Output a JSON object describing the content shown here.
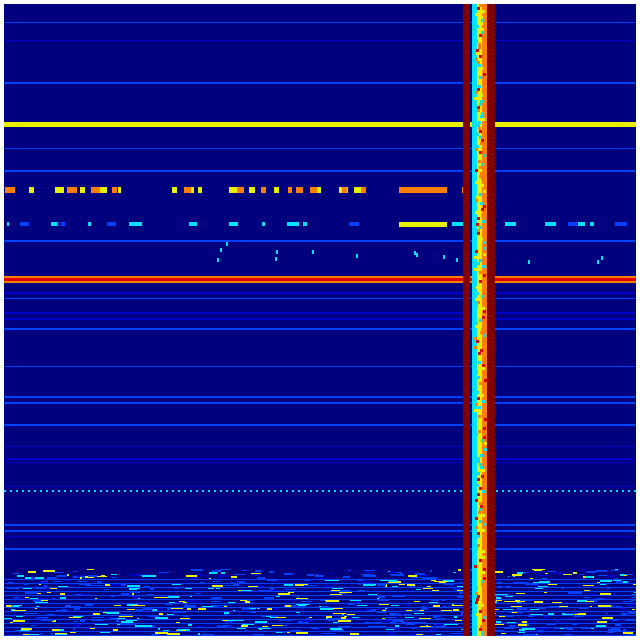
{
  "image": {
    "kind": "matrix heatmap",
    "colormap": "jet",
    "colors": {
      "background": "#00007f",
      "low_line": "#0000c8",
      "mid_line": "#0040ff",
      "cyan": "#00e0ff",
      "yellow": "#e8f000",
      "orange": "#ff8000",
      "red": "#e00000",
      "dark_red": "#800000"
    }
  }
}
